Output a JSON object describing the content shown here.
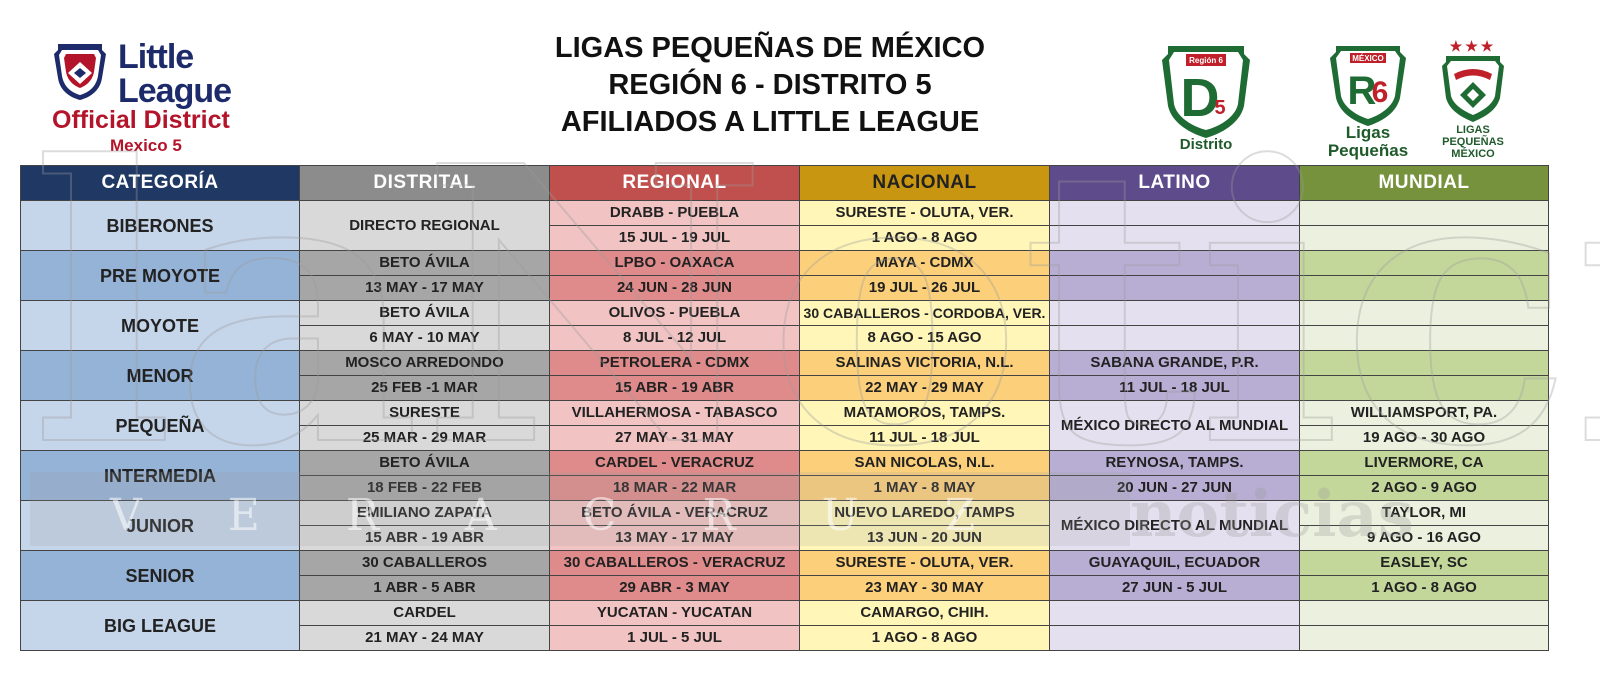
{
  "header": {
    "logo_left": {
      "line1": "Little",
      "line2": "League",
      "line3": "Official District",
      "line4": "Mexico 5"
    },
    "title_lines": [
      "LIGAS PEQUEÑAS DE MÉXICO",
      "REGIÓN 6 - DISTRITO 5",
      "AFILIADOS A LITTLE LEAGUE"
    ],
    "emblem_district": {
      "top": "Región 6",
      "letter": "D",
      "number": "5",
      "caption": "Distrito"
    },
    "emblem_region": {
      "top": "MÉXICO",
      "letter": "R",
      "number": "6",
      "caption_line1": "Ligas",
      "caption_line2": "Pequeñas"
    },
    "emblem_mexico": {
      "stars": "★★★",
      "caption_line1": "LIGAS",
      "caption_line2": "PEQUEÑAS",
      "caption_line3": "MÉXICO"
    }
  },
  "table": {
    "headers": [
      "CATEGORÍA",
      "DISTRITAL",
      "REGIONAL",
      "NACIONAL",
      "LATINO",
      "MUNDIAL"
    ],
    "header_colors": [
      "#1f3864",
      "#8c8c8c",
      "#c0504d",
      "#c99612",
      "#5e4b8b",
      "#76923c"
    ],
    "rows": [
      {
        "category": "BIBERONES",
        "distrital": [
          "DIRECTO REGIONAL",
          ""
        ],
        "distrital_merged": true,
        "regional": [
          "DRABB - PUEBLA",
          "15 JUL - 19 JUL"
        ],
        "nacional": [
          "SURESTE - OLUTA, VER.",
          "1 AGO - 8 AGO"
        ],
        "latino": [
          "",
          ""
        ],
        "mundial": [
          "",
          ""
        ]
      },
      {
        "category": "PRE MOYOTE",
        "distrital": [
          "BETO ÁVILA",
          "13 MAY - 17 MAY"
        ],
        "regional": [
          "LPBO - OAXACA",
          "24 JUN - 28 JUN"
        ],
        "nacional": [
          "MAYA - CDMX",
          "19 JUL - 26 JUL"
        ],
        "latino": [
          "",
          ""
        ],
        "mundial": [
          "",
          ""
        ]
      },
      {
        "category": "MOYOTE",
        "distrital": [
          "BETO ÁVILA",
          "6 MAY - 10 MAY"
        ],
        "regional": [
          "OLIVOS - PUEBLA",
          "8 JUL - 12 JUL"
        ],
        "nacional": [
          "30 CABALLEROS - CORDOBA, VER.",
          "8 AGO - 15 AGO"
        ],
        "latino": [
          "",
          ""
        ],
        "mundial": [
          "",
          ""
        ]
      },
      {
        "category": "MENOR",
        "distrital": [
          "MOSCO ARREDONDO",
          "25 FEB -1 MAR"
        ],
        "regional": [
          "PETROLERA - CDMX",
          "15 ABR - 19 ABR"
        ],
        "nacional": [
          "SALINAS VICTORIA, N.L.",
          "22 MAY - 29 MAY"
        ],
        "latino": [
          "SABANA GRANDE, P.R.",
          "11 JUL - 18 JUL"
        ],
        "mundial": [
          "",
          ""
        ]
      },
      {
        "category": "PEQUEÑA",
        "distrital": [
          "SURESTE",
          "25 MAR - 29 MAR"
        ],
        "regional": [
          "VILLAHERMOSA - TABASCO",
          "27 MAY - 31 MAY"
        ],
        "nacional": [
          "MATAMOROS, TAMPS.",
          "11 JUL - 18 JUL"
        ],
        "latino": [
          "MÉXICO DIRECTO AL MUNDIAL",
          ""
        ],
        "latino_merged": true,
        "mundial": [
          "WILLIAMSPORT, PA.",
          "19 AGO - 30 AGO"
        ]
      },
      {
        "category": "INTERMEDIA",
        "distrital": [
          "BETO ÁVILA",
          "18 FEB - 22 FEB"
        ],
        "regional": [
          "CARDEL - VERACRUZ",
          "18 MAR - 22 MAR"
        ],
        "nacional": [
          "SAN NICOLAS, N.L.",
          "1 MAY - 8 MAY"
        ],
        "latino": [
          "REYNOSA, TAMPS.",
          "20 JUN - 27 JUN"
        ],
        "mundial": [
          "LIVERMORE, CA",
          "2 AGO - 9 AGO"
        ]
      },
      {
        "category": "JUNIOR",
        "distrital": [
          "EMILIANO ZAPATA",
          "15 ABR - 19 ABR"
        ],
        "regional": [
          "BETO ÁVILA - VERACRUZ",
          "13 MAY - 17 MAY"
        ],
        "nacional": [
          "NUEVO LAREDO, TAMPS",
          "13 JUN - 20 JUN"
        ],
        "latino": [
          "MÉXICO DIRECTO AL MUNDIAL",
          ""
        ],
        "latino_merged": true,
        "mundial": [
          "TAYLOR, MI",
          "9 AGO - 16 AGO"
        ]
      },
      {
        "category": "SENIOR",
        "distrital": [
          "30 CABALLEROS",
          "1 ABR - 5 ABR"
        ],
        "regional": [
          "30 CABALLEROS - VERACRUZ",
          "29 ABR - 3 MAY"
        ],
        "nacional": [
          "SURESTE - OLUTA, VER.",
          "23 MAY - 30 MAY"
        ],
        "latino": [
          "GUAYAQUIL, ECUADOR",
          "27 JUN - 5 JUL"
        ],
        "mundial": [
          "EASLEY, SC",
          "1 AGO - 8 AGO"
        ]
      },
      {
        "category": "BIG LEAGUE",
        "distrital": [
          "CARDEL",
          "21 MAY - 24 MAY"
        ],
        "regional": [
          "YUCATAN - YUCATAN",
          "1 JUL - 5 JUL"
        ],
        "nacional": [
          "CAMARGO, CHIH.",
          "1 AGO - 8 AGO"
        ],
        "latino": [
          "",
          ""
        ],
        "mundial": [
          "",
          ""
        ]
      }
    ],
    "row_colors": {
      "light": [
        "#c5d5ea",
        "#d9d9d9",
        "#f2c3c3",
        "#fff6b8",
        "#e5e0ef",
        "#ebf1de"
      ],
      "dark": [
        "#95b3d7",
        "#a6a6a6",
        "#e08b8b",
        "#fcd07a",
        "#b8aed4",
        "#c4d79b"
      ]
    }
  },
  "watermark": {
    "main": "laNoticia",
    "sub": "VERACRUZ",
    "sub2": "noticias"
  }
}
